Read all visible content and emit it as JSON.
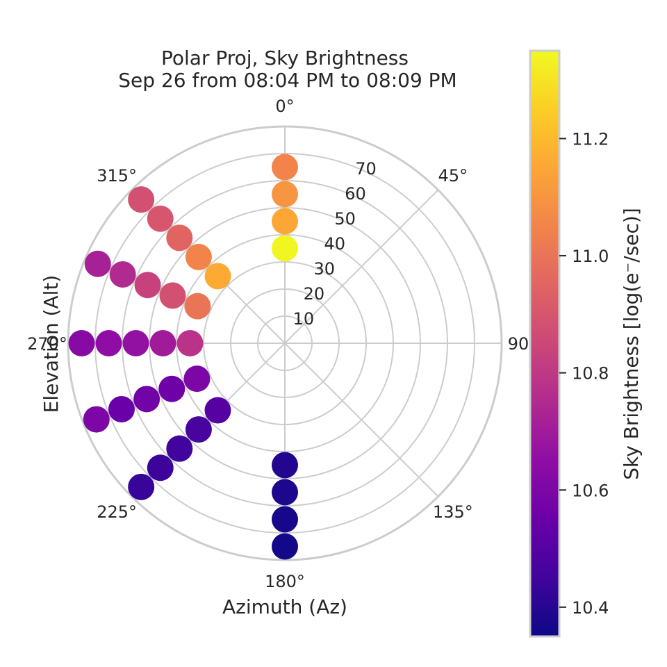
{
  "chart_data": {
    "type": "scatter",
    "projection": "polar",
    "title_line1": "Polar Proj, Sky Brightness",
    "title_line2": "Sep 26 from 08:04 PM to 08:09 PM",
    "xlabel": "Azimuth (Az)",
    "ylabel": "Elevation (Alt)",
    "colorbar_label": "Sky Brightness [log(e⁻/sec)]",
    "colormap": "plasma",
    "color_range": [
      10.35,
      11.35
    ],
    "colorbar_ticks": [
      "10.4",
      "10.6",
      "10.8",
      "11.0",
      "11.2"
    ],
    "angle_ticks": [
      "0°",
      "45°",
      "90°",
      "135°",
      "180°",
      "225°",
      "270°",
      "315°"
    ],
    "radial_ticks": [
      "10",
      "20",
      "30",
      "40",
      "50",
      "60",
      "70"
    ],
    "radial_max": 80,
    "theta_zero": "N",
    "theta_direction": "clockwise",
    "grid": true,
    "points": [
      {
        "az": 0,
        "elev": 35,
        "value": 11.34
      },
      {
        "az": 0,
        "elev": 45,
        "value": 11.15
      },
      {
        "az": 0,
        "elev": 55,
        "value": 11.1
      },
      {
        "az": 0,
        "elev": 65,
        "value": 11.05
      },
      {
        "az": 315,
        "elev": 35,
        "value": 11.16
      },
      {
        "az": 315,
        "elev": 45,
        "value": 11.05
      },
      {
        "az": 315,
        "elev": 55,
        "value": 10.95
      },
      {
        "az": 315,
        "elev": 65,
        "value": 10.9
      },
      {
        "az": 315,
        "elev": 75,
        "value": 10.88
      },
      {
        "az": 293,
        "elev": 35,
        "value": 11.0
      },
      {
        "az": 293,
        "elev": 45,
        "value": 10.88
      },
      {
        "az": 293,
        "elev": 55,
        "value": 10.83
      },
      {
        "az": 293,
        "elev": 65,
        "value": 10.75
      },
      {
        "az": 293,
        "elev": 75,
        "value": 10.72
      },
      {
        "az": 270,
        "elev": 35,
        "value": 10.78
      },
      {
        "az": 270,
        "elev": 45,
        "value": 10.7
      },
      {
        "az": 270,
        "elev": 55,
        "value": 10.66
      },
      {
        "az": 270,
        "elev": 65,
        "value": 10.65
      },
      {
        "az": 270,
        "elev": 75,
        "value": 10.63
      },
      {
        "az": 248,
        "elev": 35,
        "value": 10.6
      },
      {
        "az": 248,
        "elev": 45,
        "value": 10.56
      },
      {
        "az": 248,
        "elev": 55,
        "value": 10.57
      },
      {
        "az": 248,
        "elev": 65,
        "value": 10.55
      },
      {
        "az": 248,
        "elev": 75,
        "value": 10.6
      },
      {
        "az": 225,
        "elev": 35,
        "value": 10.5
      },
      {
        "az": 225,
        "elev": 45,
        "value": 10.47
      },
      {
        "az": 225,
        "elev": 55,
        "value": 10.45
      },
      {
        "az": 225,
        "elev": 65,
        "value": 10.44
      },
      {
        "az": 225,
        "elev": 75,
        "value": 10.43
      },
      {
        "az": 180,
        "elev": 45,
        "value": 10.39
      },
      {
        "az": 180,
        "elev": 55,
        "value": 10.38
      },
      {
        "az": 180,
        "elev": 65,
        "value": 10.37
      },
      {
        "az": 180,
        "elev": 75,
        "value": 10.36
      }
    ]
  }
}
